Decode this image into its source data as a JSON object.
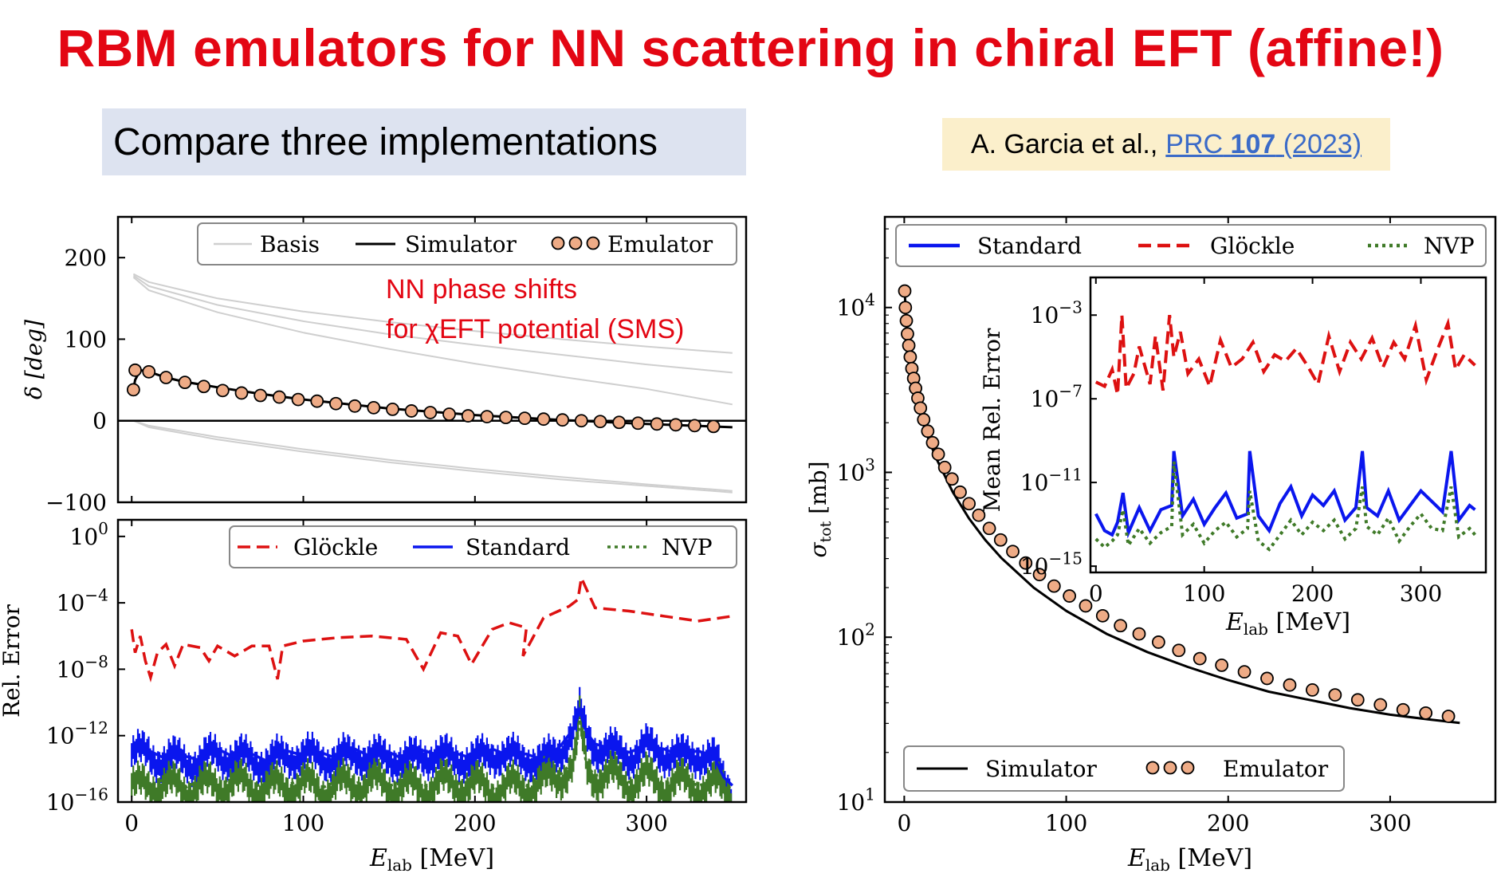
{
  "title": "RBM emulators for NN scattering in chiral EFT (affine!)",
  "subtitle": "Compare three implementations",
  "reference": {
    "authors": "A. Garcia et al.,",
    "journal": "PRC",
    "volume": "107",
    "year": "(2023)"
  },
  "colors": {
    "title": "#e30613",
    "glockle": "#dd1111",
    "standard": "#0a16ee",
    "nvp": "#3f7a28",
    "emulator": "#eeab86",
    "simulator": "#000000",
    "basis": "#cfcfcf"
  },
  "chart_data": [
    {
      "type": "line",
      "panel": "phase-shifts",
      "ylabel": "δ [deg]",
      "xlim": [
        -8,
        358
      ],
      "ylim": [
        -100,
        250
      ],
      "yticks": [
        "−100",
        "0",
        "100",
        "200"
      ],
      "annotation": [
        "NN phase shifts",
        "for χEFT potential (SMS)"
      ],
      "legend": [
        "Basis",
        "Simulator",
        "Emulator"
      ],
      "basis_curves": [
        {
          "x": [
            1,
            10,
            50,
            100,
            150,
            200,
            250,
            300,
            350
          ],
          "y": [
            180,
            170,
            150,
            134,
            121,
            110,
            100,
            91,
            83
          ]
        },
        {
          "x": [
            1,
            10,
            50,
            100,
            150,
            200,
            250,
            300,
            350
          ],
          "y": [
            178,
            165,
            142,
            122,
            106,
            93,
            81,
            69,
            59
          ]
        },
        {
          "x": [
            1,
            10,
            50,
            100,
            150,
            200,
            250,
            300,
            350
          ],
          "y": [
            176,
            160,
            133,
            108,
            88,
            70,
            54,
            39,
            20
          ]
        },
        {
          "x": [
            1,
            10,
            50,
            100,
            150,
            200,
            250,
            300,
            350
          ],
          "y": [
            0,
            -6,
            -20,
            -35,
            -48,
            -59,
            -69,
            -78,
            -86
          ]
        },
        {
          "x": [
            1,
            10,
            50,
            100,
            150,
            200,
            250,
            300,
            350
          ],
          "y": [
            0,
            -8,
            -23,
            -38,
            -51,
            -62,
            -72,
            -80,
            -88
          ]
        }
      ],
      "simulator": {
        "x": [
          1,
          2,
          5,
          10,
          20,
          30,
          50,
          75,
          100,
          150,
          200,
          250,
          300,
          350
        ],
        "y": [
          38,
          50,
          62,
          60,
          53,
          48,
          41,
          33,
          26,
          15,
          7,
          1,
          -4,
          -8
        ]
      },
      "emulator": {
        "x": [
          1,
          2,
          10,
          20,
          31,
          42,
          53,
          64,
          75,
          86,
          97,
          108,
          119,
          130,
          141,
          152,
          163,
          174,
          185,
          196,
          207,
          218,
          229,
          240,
          251,
          262,
          273,
          284,
          295,
          306,
          317,
          328,
          339
        ],
        "y": [
          38,
          62,
          60,
          53,
          47,
          42,
          37,
          34,
          31,
          29,
          26,
          24,
          21,
          18,
          16,
          14,
          12,
          10,
          8,
          6,
          5,
          4,
          3,
          2,
          1,
          0,
          -1,
          -2,
          -3,
          -4,
          -5,
          -6,
          -7
        ]
      }
    },
    {
      "type": "line",
      "panel": "relative-error",
      "ylabel": "Rel. Error",
      "xlabel": "E_lab [MeV]",
      "xlim": [
        -8,
        358
      ],
      "ylim_log10": [
        -16,
        1
      ],
      "yticks": [
        "10^0",
        "10^−4",
        "10^−8",
        "10^−12",
        "10^−16"
      ],
      "xticks": [
        "0",
        "100",
        "200",
        "300"
      ],
      "legend": [
        "Glöckle",
        "Standard",
        "NVP"
      ],
      "series": [
        {
          "name": "Glöckle",
          "style": "dashed",
          "x": [
            0,
            2,
            5,
            8,
            11,
            15,
            20,
            25,
            30,
            40,
            45,
            50,
            60,
            70,
            80,
            85,
            88,
            100,
            120,
            140,
            160,
            170,
            180,
            190,
            198,
            210,
            220,
            230,
            228,
            240,
            255,
            260,
            262,
            270,
            290,
            310,
            330,
            350
          ],
          "y_log10": [
            -5.6,
            -7,
            -6,
            -7.5,
            -8.5,
            -7,
            -6.5,
            -7.8,
            -6.5,
            -6.7,
            -7.5,
            -6.6,
            -7.2,
            -6.6,
            -6.6,
            -8.6,
            -6.6,
            -6.3,
            -6.1,
            -6,
            -6.2,
            -8,
            -5.8,
            -6,
            -7.7,
            -5.6,
            -5.2,
            -5.5,
            -7.2,
            -4.9,
            -4.2,
            -3.8,
            -2.5,
            -4.3,
            -4.5,
            -4.8,
            -5.1,
            -4.8
          ]
        },
        {
          "name": "Standard",
          "style": "solid",
          "x": [
            0,
            10,
            20,
            30,
            40,
            50,
            60,
            70,
            80,
            90,
            100,
            110,
            120,
            130,
            140,
            150,
            160,
            170,
            180,
            190,
            200,
            210,
            220,
            230,
            240,
            250,
            258,
            261,
            265,
            270,
            280,
            290,
            300,
            310,
            320,
            330,
            340,
            345,
            350
          ],
          "y_log10": [
            -13,
            -12.9,
            -13.4,
            -13.2,
            -13.5,
            -12.8,
            -13.3,
            -13.1,
            -13.6,
            -12.9,
            -13.2,
            -13,
            -13.4,
            -12.8,
            -13.3,
            -13,
            -13.5,
            -12.9,
            -13.2,
            -13.1,
            -13.4,
            -12.8,
            -13.2,
            -13.1,
            -13.5,
            -12.6,
            -11.5,
            -10.5,
            -11.8,
            -12.5,
            -12.8,
            -13,
            -12.6,
            -12.8,
            -13.2,
            -12.9,
            -13.4,
            -14.5,
            -15
          ]
        },
        {
          "name": "NVP",
          "style": "dotted",
          "x": [
            0,
            10,
            20,
            30,
            40,
            50,
            60,
            70,
            80,
            90,
            100,
            110,
            120,
            130,
            140,
            150,
            160,
            170,
            180,
            190,
            200,
            210,
            220,
            230,
            240,
            250,
            258,
            261,
            265,
            270,
            280,
            290,
            300,
            310,
            320,
            330,
            340,
            350
          ],
          "y_log10": [
            -14.8,
            -15,
            -14.6,
            -15.2,
            -14.7,
            -15,
            -14.5,
            -15.1,
            -14.8,
            -15,
            -14.6,
            -15.2,
            -14.7,
            -14.9,
            -14.5,
            -15,
            -14.8,
            -15.1,
            -14.6,
            -14.9,
            -14.7,
            -15.2,
            -14.8,
            -15,
            -14.6,
            -14.3,
            -13.5,
            -11,
            -13.8,
            -14.4,
            -14.2,
            -14.8,
            -14.3,
            -14.9,
            -14.6,
            -15,
            -14.8,
            -15.2
          ]
        }
      ]
    },
    {
      "type": "line",
      "panel": "total-cross-section",
      "ylabel": "σ_tot [mb]",
      "xlabel": "E_lab [MeV]",
      "xlim": [
        -12,
        365
      ],
      "ylim_log10": [
        1,
        4.55
      ],
      "yticks": [
        "10^1",
        "10^2",
        "10^3",
        "10^4"
      ],
      "xticks": [
        "0",
        "100",
        "200",
        "300"
      ],
      "legend": [
        "Standard",
        "Glöckle",
        "NVP"
      ],
      "lower_legend": [
        "Simulator",
        "Emulator"
      ],
      "simulator": {
        "x": [
          0.3,
          1,
          2,
          4,
          6,
          8,
          10,
          15,
          20,
          30,
          40,
          50,
          60,
          80,
          100,
          125,
          150,
          175,
          200,
          225,
          250,
          275,
          300,
          325,
          343
        ],
        "y_log10": [
          4.1,
          3.95,
          3.8,
          3.64,
          3.52,
          3.43,
          3.35,
          3.2,
          3.08,
          2.88,
          2.72,
          2.59,
          2.48,
          2.3,
          2.16,
          2.02,
          1.91,
          1.82,
          1.74,
          1.67,
          1.62,
          1.57,
          1.53,
          1.5,
          1.48
        ]
      },
      "emulator": {
        "x": [
          0.3,
          0.7,
          1.3,
          2,
          2.8,
          3.7,
          4.7,
          5.8,
          7,
          8.4,
          10,
          12,
          14.5,
          17.5,
          21,
          25,
          29.5,
          34.5,
          40,
          46,
          52.5,
          59.5,
          67,
          75,
          83.5,
          92.5,
          102,
          112,
          122.5,
          133.5,
          145,
          157,
          169.5,
          182.5,
          196,
          210,
          224,
          238,
          252,
          266,
          280,
          294,
          308,
          322,
          336
        ],
        "y_log10": [
          4.1,
          4.0,
          3.92,
          3.84,
          3.77,
          3.7,
          3.63,
          3.57,
          3.51,
          3.45,
          3.39,
          3.32,
          3.25,
          3.18,
          3.11,
          3.03,
          2.96,
          2.88,
          2.81,
          2.74,
          2.66,
          2.59,
          2.52,
          2.45,
          2.38,
          2.31,
          2.25,
          2.19,
          2.13,
          2.07,
          2.02,
          1.97,
          1.92,
          1.87,
          1.83,
          1.79,
          1.75,
          1.71,
          1.68,
          1.65,
          1.62,
          1.59,
          1.56,
          1.54,
          1.52
        ]
      }
    },
    {
      "type": "line",
      "panel": "inset-mean-relative-error",
      "ylabel": "Mean Rel. Error",
      "xlabel": "E_lab [MeV]",
      "xlim": [
        -5,
        360
      ],
      "ylim_log10": [
        -15.3,
        -1.2
      ],
      "yticks": [
        "10^−3",
        "10^−7",
        "10^−11",
        "10^−15"
      ],
      "xticks": [
        "0",
        "100",
        "200",
        "300"
      ],
      "series": [
        {
          "name": "Glöckle",
          "style": "dashed",
          "x": [
            0,
            8,
            15,
            20,
            24,
            28,
            35,
            40,
            50,
            55,
            62,
            68,
            72,
            78,
            85,
            95,
            105,
            115,
            125,
            135,
            145,
            155,
            165,
            175,
            185,
            195,
            205,
            215,
            225,
            235,
            245,
            255,
            265,
            275,
            285,
            295,
            305,
            315,
            325,
            332,
            340,
            350
          ],
          "y_log10": [
            -6.2,
            -6.4,
            -5.6,
            -6.8,
            -3,
            -6.5,
            -5.8,
            -4.5,
            -6.3,
            -4,
            -6.6,
            -3,
            -5,
            -3.8,
            -5.8,
            -5.1,
            -6.4,
            -4.2,
            -5.5,
            -5.1,
            -4.3,
            -5.7,
            -4.9,
            -5.2,
            -4.6,
            -5.4,
            -6.3,
            -4,
            -5.7,
            -4.3,
            -5.1,
            -4.1,
            -5.5,
            -4.3,
            -5.1,
            -3.5,
            -6.1,
            -4.7,
            -3.4,
            -5.6,
            -4.9,
            -5.4
          ]
        },
        {
          "name": "Standard",
          "style": "solid",
          "x": [
            0,
            8,
            15,
            20,
            25,
            30,
            40,
            50,
            60,
            70,
            72,
            80,
            90,
            100,
            110,
            120,
            130,
            140,
            142,
            150,
            160,
            170,
            180,
            190,
            200,
            210,
            220,
            230,
            240,
            246,
            250,
            260,
            270,
            280,
            290,
            300,
            310,
            320,
            328,
            335,
            345,
            350
          ],
          "y_log10": [
            -12.5,
            -13.3,
            -13.5,
            -12.9,
            -11.5,
            -13.4,
            -12.2,
            -13.3,
            -12.3,
            -12.1,
            -9.5,
            -12.6,
            -11.8,
            -13,
            -12.2,
            -11.5,
            -12.7,
            -12.5,
            -9.5,
            -12.6,
            -13.3,
            -12,
            -11.2,
            -12.6,
            -11.6,
            -12.1,
            -11.4,
            -12.8,
            -12.2,
            -9.5,
            -12.2,
            -12.6,
            -11.4,
            -12.8,
            -12.1,
            -11.4,
            -11.9,
            -12.4,
            -9.5,
            -12.8,
            -12.1,
            -12.3
          ]
        },
        {
          "name": "NVP",
          "style": "dotted",
          "x": [
            0,
            8,
            15,
            20,
            25,
            30,
            40,
            50,
            60,
            70,
            72,
            80,
            90,
            100,
            110,
            120,
            130,
            140,
            142,
            150,
            160,
            170,
            180,
            190,
            200,
            210,
            220,
            230,
            240,
            246,
            250,
            260,
            270,
            280,
            290,
            300,
            310,
            320,
            328,
            335,
            345,
            350
          ],
          "y_log10": [
            -13.7,
            -14.1,
            -13.8,
            -13.5,
            -12.3,
            -14,
            -13.2,
            -13.9,
            -13.4,
            -13.1,
            -10,
            -13.5,
            -13,
            -13.9,
            -13.3,
            -12.9,
            -13.6,
            -13.2,
            -11.4,
            -13.8,
            -14.2,
            -13.5,
            -12.8,
            -13.5,
            -12.9,
            -13.3,
            -12.8,
            -13.7,
            -13.2,
            -11.2,
            -13.1,
            -13.5,
            -12.7,
            -13.8,
            -13.1,
            -12.5,
            -13.2,
            -13.3,
            -11.2,
            -13.6,
            -13.2,
            -13.5
          ]
        }
      ]
    }
  ]
}
